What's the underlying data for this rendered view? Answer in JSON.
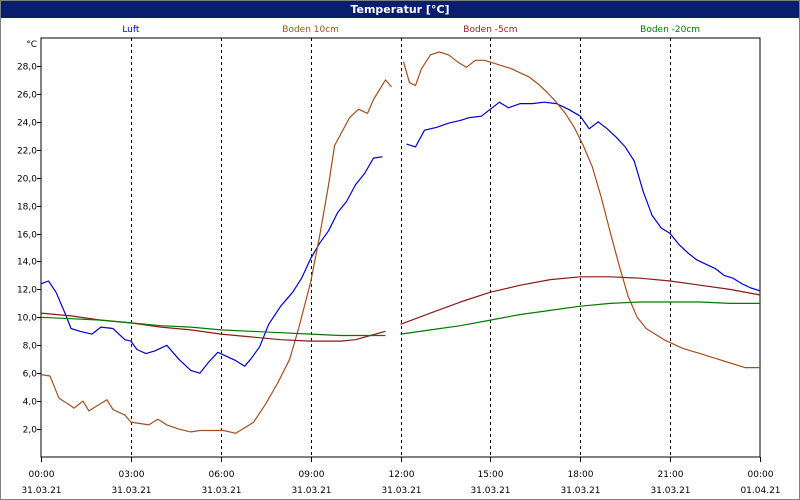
{
  "window": {
    "title": "Temperatur [°C]"
  },
  "chart_data": {
    "type": "line",
    "title": "Temperatur [°C]",
    "ylabel": "°C",
    "xlabel": "",
    "ylim": [
      0,
      30
    ],
    "xlim": [
      0,
      24
    ],
    "grid": true,
    "legend_position": "top",
    "y_ticks": [
      "2,0",
      "4,0",
      "6,0",
      "8,0",
      "10,0",
      "12,0",
      "14,0",
      "16,0",
      "18,0",
      "20,0",
      "22,0",
      "24,0",
      "26,0",
      "28,0"
    ],
    "x_ticks": [
      {
        "time": "00:00",
        "date": "31.03.21"
      },
      {
        "time": "03:00",
        "date": "31.03.21"
      },
      {
        "time": "06:00",
        "date": "31.03.21"
      },
      {
        "time": "09:00",
        "date": "31.03.21"
      },
      {
        "time": "12:00",
        "date": "31.03.21"
      },
      {
        "time": "15:00",
        "date": "31.03.21"
      },
      {
        "time": "18:00",
        "date": "31.03.21"
      },
      {
        "time": "21:00",
        "date": "31.03.21"
      },
      {
        "time": "00:00",
        "date": "01.04.21"
      }
    ],
    "series": [
      {
        "name": "Luft",
        "color": "#0000cc",
        "segments": [
          [
            [
              0,
              12.4
            ],
            [
              0.25,
              12.6
            ],
            [
              0.5,
              11.8
            ],
            [
              0.8,
              10.3
            ],
            [
              1.0,
              9.2
            ],
            [
              1.3,
              9.0
            ],
            [
              1.7,
              8.8
            ],
            [
              2.0,
              9.3
            ],
            [
              2.4,
              9.2
            ],
            [
              2.8,
              8.4
            ],
            [
              3.0,
              8.3
            ],
            [
              3.2,
              7.7
            ],
            [
              3.5,
              7.4
            ],
            [
              3.8,
              7.6
            ],
            [
              4.2,
              8.0
            ],
            [
              4.6,
              7.0
            ],
            [
              5.0,
              6.2
            ],
            [
              5.3,
              6.0
            ],
            [
              5.6,
              6.8
            ],
            [
              5.9,
              7.5
            ],
            [
              6.2,
              7.2
            ],
            [
              6.5,
              6.9
            ],
            [
              6.8,
              6.5
            ],
            [
              7.0,
              7.0
            ],
            [
              7.3,
              7.9
            ],
            [
              7.6,
              9.5
            ],
            [
              8.0,
              10.8
            ],
            [
              8.4,
              11.8
            ],
            [
              8.7,
              12.8
            ],
            [
              9.0,
              14.2
            ],
            [
              9.3,
              15.3
            ],
            [
              9.6,
              16.2
            ],
            [
              9.9,
              17.5
            ],
            [
              10.2,
              18.3
            ],
            [
              10.5,
              19.5
            ],
            [
              10.8,
              20.3
            ],
            [
              11.1,
              21.4
            ],
            [
              11.4,
              21.5
            ]
          ],
          [
            [
              12.2,
              22.4
            ],
            [
              12.5,
              22.2
            ],
            [
              12.8,
              23.4
            ],
            [
              13.2,
              23.6
            ],
            [
              13.6,
              23.9
            ],
            [
              14.0,
              24.1
            ],
            [
              14.3,
              24.3
            ],
            [
              14.7,
              24.4
            ],
            [
              15.0,
              24.9
            ],
            [
              15.3,
              25.4
            ],
            [
              15.6,
              25.0
            ],
            [
              16.0,
              25.3
            ],
            [
              16.4,
              25.3
            ],
            [
              16.8,
              25.4
            ],
            [
              17.2,
              25.3
            ],
            [
              17.6,
              24.9
            ],
            [
              18.0,
              24.4
            ],
            [
              18.3,
              23.5
            ],
            [
              18.6,
              24.0
            ],
            [
              18.9,
              23.5
            ],
            [
              19.2,
              22.9
            ],
            [
              19.5,
              22.2
            ],
            [
              19.8,
              21.2
            ],
            [
              20.1,
              19.0
            ],
            [
              20.4,
              17.3
            ],
            [
              20.7,
              16.4
            ],
            [
              21.0,
              16.0
            ],
            [
              21.3,
              15.2
            ],
            [
              21.6,
              14.6
            ],
            [
              21.9,
              14.1
            ],
            [
              22.2,
              13.8
            ],
            [
              22.5,
              13.5
            ],
            [
              22.8,
              13.0
            ],
            [
              23.1,
              12.8
            ],
            [
              23.4,
              12.4
            ],
            [
              23.7,
              12.1
            ],
            [
              24.0,
              11.9
            ]
          ]
        ]
      },
      {
        "name": "Boden 10cm",
        "color": "#a0501e",
        "segments": [
          [
            [
              0,
              5.9
            ],
            [
              0.3,
              5.8
            ],
            [
              0.6,
              4.2
            ],
            [
              0.9,
              3.8
            ],
            [
              1.1,
              3.5
            ],
            [
              1.4,
              4.0
            ],
            [
              1.6,
              3.3
            ],
            [
              1.9,
              3.7
            ],
            [
              2.2,
              4.1
            ],
            [
              2.4,
              3.4
            ],
            [
              2.8,
              3.0
            ],
            [
              3.0,
              2.5
            ],
            [
              3.3,
              2.4
            ],
            [
              3.6,
              2.3
            ],
            [
              3.9,
              2.7
            ],
            [
              4.2,
              2.3
            ],
            [
              4.6,
              2.0
            ],
            [
              5.0,
              1.8
            ],
            [
              5.3,
              1.9
            ],
            [
              5.7,
              1.9
            ],
            [
              6.1,
              1.9
            ],
            [
              6.5,
              1.7
            ],
            [
              6.8,
              2.1
            ],
            [
              7.1,
              2.5
            ],
            [
              7.5,
              3.8
            ],
            [
              7.9,
              5.3
            ],
            [
              8.3,
              7.0
            ],
            [
              8.6,
              9.2
            ],
            [
              9.0,
              12.5
            ],
            [
              9.3,
              15.8
            ],
            [
              9.6,
              19.5
            ],
            [
              9.8,
              22.3
            ],
            [
              10.0,
              23.1
            ],
            [
              10.3,
              24.3
            ],
            [
              10.6,
              24.9
            ],
            [
              10.9,
              24.6
            ],
            [
              11.1,
              25.6
            ],
            [
              11.3,
              26.3
            ],
            [
              11.5,
              27.0
            ],
            [
              11.7,
              26.5
            ]
          ],
          [
            [
              12.1,
              28.3
            ],
            [
              12.3,
              26.8
            ],
            [
              12.5,
              26.6
            ],
            [
              12.7,
              27.8
            ],
            [
              13.0,
              28.8
            ],
            [
              13.3,
              29.0
            ],
            [
              13.6,
              28.8
            ],
            [
              13.9,
              28.3
            ],
            [
              14.2,
              27.9
            ],
            [
              14.5,
              28.4
            ],
            [
              14.8,
              28.4
            ],
            [
              15.1,
              28.2
            ],
            [
              15.4,
              28.0
            ],
            [
              15.7,
              27.8
            ],
            [
              16.0,
              27.5
            ],
            [
              16.3,
              27.2
            ],
            [
              16.6,
              26.7
            ],
            [
              16.9,
              26.1
            ],
            [
              17.2,
              25.4
            ],
            [
              17.5,
              24.6
            ],
            [
              17.8,
              23.6
            ],
            [
              18.1,
              22.3
            ],
            [
              18.4,
              20.8
            ],
            [
              18.7,
              18.6
            ],
            [
              19.0,
              16.1
            ],
            [
              19.3,
              13.7
            ],
            [
              19.6,
              11.5
            ],
            [
              19.9,
              10.0
            ],
            [
              20.2,
              9.2
            ],
            [
              20.5,
              8.8
            ],
            [
              20.8,
              8.4
            ],
            [
              21.1,
              8.1
            ],
            [
              21.4,
              7.8
            ],
            [
              21.7,
              7.6
            ],
            [
              22.0,
              7.4
            ],
            [
              22.3,
              7.2
            ],
            [
              22.6,
              7.0
            ],
            [
              22.9,
              6.8
            ],
            [
              23.2,
              6.6
            ],
            [
              23.5,
              6.4
            ],
            [
              23.8,
              6.4
            ],
            [
              24.0,
              6.4
            ]
          ]
        ]
      },
      {
        "name": "Boden -5cm",
        "color": "#8b1a1a",
        "segments": [
          [
            [
              0,
              10.3
            ],
            [
              1.0,
              10.1
            ],
            [
              2.0,
              9.8
            ],
            [
              3.0,
              9.6
            ],
            [
              4.0,
              9.3
            ],
            [
              5.0,
              9.1
            ],
            [
              6.0,
              8.8
            ],
            [
              7.0,
              8.6
            ],
            [
              8.0,
              8.4
            ],
            [
              9.0,
              8.3
            ],
            [
              10.0,
              8.3
            ],
            [
              10.5,
              8.4
            ],
            [
              11.0,
              8.7
            ],
            [
              11.5,
              9.0
            ]
          ],
          [
            [
              12.0,
              9.5
            ],
            [
              13.0,
              10.3
            ],
            [
              14.0,
              11.1
            ],
            [
              15.0,
              11.8
            ],
            [
              16.0,
              12.3
            ],
            [
              17.0,
              12.7
            ],
            [
              18.0,
              12.9
            ],
            [
              19.0,
              12.9
            ],
            [
              20.0,
              12.8
            ],
            [
              21.0,
              12.6
            ],
            [
              22.0,
              12.3
            ],
            [
              23.0,
              12.0
            ],
            [
              24.0,
              11.6
            ]
          ]
        ]
      },
      {
        "name": "Boden -20cm",
        "color": "#007a00",
        "segments": [
          [
            [
              0,
              10.0
            ],
            [
              1.0,
              9.9
            ],
            [
              2.0,
              9.8
            ],
            [
              3.0,
              9.6
            ],
            [
              4.0,
              9.4
            ],
            [
              5.0,
              9.3
            ],
            [
              6.0,
              9.1
            ],
            [
              7.0,
              9.0
            ],
            [
              8.0,
              8.9
            ],
            [
              9.0,
              8.8
            ],
            [
              10.0,
              8.7
            ],
            [
              11.0,
              8.7
            ],
            [
              11.5,
              8.7
            ]
          ],
          [
            [
              12.0,
              8.8
            ],
            [
              13.0,
              9.1
            ],
            [
              14.0,
              9.4
            ],
            [
              15.0,
              9.8
            ],
            [
              16.0,
              10.2
            ],
            [
              17.0,
              10.5
            ],
            [
              18.0,
              10.8
            ],
            [
              19.0,
              11.0
            ],
            [
              20.0,
              11.1
            ],
            [
              21.0,
              11.1
            ],
            [
              22.0,
              11.1
            ],
            [
              23.0,
              11.0
            ],
            [
              24.0,
              11.0
            ]
          ]
        ]
      }
    ]
  }
}
